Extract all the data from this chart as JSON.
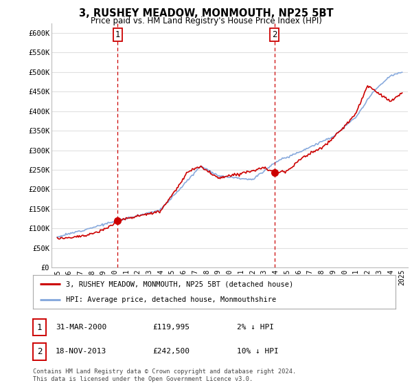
{
  "title": "3, RUSHEY MEADOW, MONMOUTH, NP25 5BT",
  "subtitle": "Price paid vs. HM Land Registry's House Price Index (HPI)",
  "ylabel_ticks": [
    "£0",
    "£50K",
    "£100K",
    "£150K",
    "£200K",
    "£250K",
    "£300K",
    "£350K",
    "£400K",
    "£450K",
    "£500K",
    "£550K",
    "£600K"
  ],
  "ytick_values": [
    0,
    50000,
    100000,
    150000,
    200000,
    250000,
    300000,
    350000,
    400000,
    450000,
    500000,
    550000,
    600000
  ],
  "ylim": [
    0,
    625000
  ],
  "xlim_start": 1994.5,
  "xlim_end": 2025.5,
  "xtick_labels": [
    "1995",
    "1996",
    "1997",
    "1998",
    "1999",
    "2000",
    "2001",
    "2002",
    "2003",
    "2004",
    "2005",
    "2006",
    "2007",
    "2008",
    "2009",
    "2010",
    "2011",
    "2012",
    "2013",
    "2014",
    "2015",
    "2016",
    "2017",
    "2018",
    "2019",
    "2020",
    "2021",
    "2022",
    "2023",
    "2024",
    "2025"
  ],
  "xtick_values": [
    1995,
    1996,
    1997,
    1998,
    1999,
    2000,
    2001,
    2002,
    2003,
    2004,
    2005,
    2006,
    2007,
    2008,
    2009,
    2010,
    2011,
    2012,
    2013,
    2014,
    2015,
    2016,
    2017,
    2018,
    2019,
    2020,
    2021,
    2022,
    2023,
    2024,
    2025
  ],
  "sale_dates": [
    2000.247,
    2013.886
  ],
  "sale_prices": [
    119995,
    242500
  ],
  "sale_labels": [
    "1",
    "2"
  ],
  "sale_dashed_color": "#cc0000",
  "sale_dot_color": "#cc0000",
  "hpi_color": "#88aadd",
  "price_color": "#cc0000",
  "legend_entry1": "3, RUSHEY MEADOW, MONMOUTH, NP25 5BT (detached house)",
  "legend_entry2": "HPI: Average price, detached house, Monmouthshire",
  "table_row1": [
    "1",
    "31-MAR-2000",
    "£119,995",
    "2% ↓ HPI"
  ],
  "table_row2": [
    "2",
    "18-NOV-2013",
    "£242,500",
    "10% ↓ HPI"
  ],
  "footer": "Contains HM Land Registry data © Crown copyright and database right 2024.\nThis data is licensed under the Open Government Licence v3.0.",
  "background_color": "#ffffff",
  "grid_color": "#e0e0e0",
  "hpi_anchors_t": [
    1995.0,
    2000.25,
    2004.0,
    2007.5,
    2009.0,
    2012.0,
    2014.0,
    2016.0,
    2019.0,
    2021.0,
    2022.5,
    2024.0,
    2025.0
  ],
  "hpi_anchors_v": [
    78000,
    120000,
    148000,
    260000,
    235000,
    225000,
    270000,
    295000,
    335000,
    385000,
    450000,
    490000,
    500000
  ],
  "price_anchors_t": [
    1995.0,
    1997.5,
    1999.0,
    2000.247,
    2001.5,
    2004.0,
    2006.5,
    2007.5,
    2009.0,
    2010.5,
    2012.0,
    2013.0,
    2013.886,
    2015.0,
    2016.5,
    2018.0,
    2019.5,
    2021.0,
    2022.0,
    2023.0,
    2024.0,
    2025.0
  ],
  "price_anchors_v": [
    74000,
    82000,
    95000,
    119995,
    128000,
    145000,
    248000,
    258000,
    228000,
    238000,
    248000,
    255000,
    242500,
    248000,
    285000,
    305000,
    345000,
    395000,
    465000,
    445000,
    425000,
    445000
  ]
}
